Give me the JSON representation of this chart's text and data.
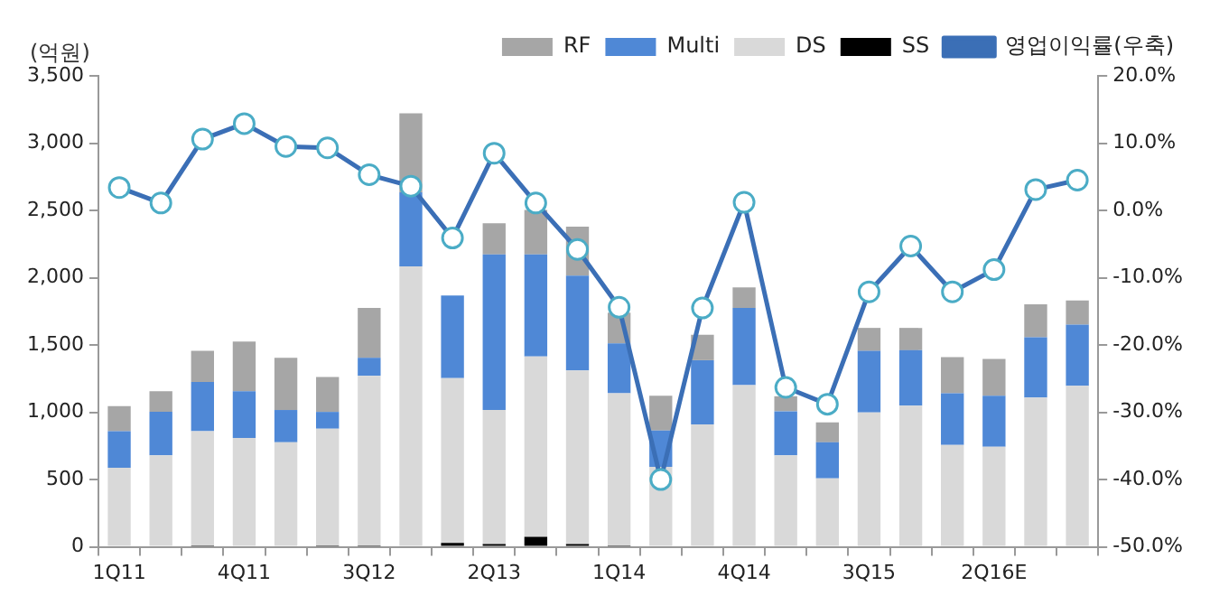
{
  "chart_data": {
    "type": "bar",
    "stacked": true,
    "ylabel": "(억원)",
    "categories": [
      "1Q11",
      null,
      null,
      "4Q11",
      null,
      null,
      "3Q12",
      null,
      null,
      "2Q13",
      null,
      null,
      "1Q14",
      null,
      null,
      "4Q14",
      null,
      null,
      "3Q15",
      null,
      null,
      "2Q16E",
      null,
      null
    ],
    "series": [
      {
        "name": "SS",
        "color": "#000000",
        "values": [
          0,
          0,
          10,
          0,
          0,
          10,
          10,
          0,
          30,
          20,
          75,
          20,
          10,
          null,
          null,
          0,
          0,
          0,
          0,
          0,
          0,
          0,
          0,
          0
        ]
      },
      {
        "name": "DS",
        "color": "#d9d9d9",
        "values": [
          587,
          680,
          850,
          809,
          777,
          868,
          1261,
          2085,
          1223,
          997,
          1340,
          1290,
          1132,
          595,
          910,
          1202,
          680,
          509,
          999,
          1049,
          758,
          744,
          1110,
          1197
        ]
      },
      {
        "name": "Multi",
        "color": "#4f88d6",
        "values": [
          273,
          323,
          365,
          347,
          240,
          125,
          134,
          550,
          615,
          1156,
          758,
          705,
          370,
          270,
          477,
          573,
          328,
          268,
          457,
          412,
          384,
          379,
          448,
          454
        ]
      },
      {
        "name": "RF",
        "color": "#a6a6a6",
        "values": [
          185,
          153,
          231,
          370,
          388,
          259,
          370,
          587,
          null,
          231,
          330,
          365,
          228,
          258,
          189,
          153,
          111,
          148,
          171,
          166,
          268,
          273,
          245,
          180
        ]
      },
      {
        "name": "영업이익률(우축)",
        "type": "line",
        "axis": "y2",
        "color": "#3b6fb6",
        "marker": "circle",
        "values": [
          3.4,
          1.1,
          10.6,
          12.9,
          9.5,
          9.3,
          5.3,
          3.6,
          -4.1,
          8.5,
          1.1,
          -5.8,
          -14.4,
          -40.0,
          -14.5,
          1.2,
          -26.3,
          -28.8,
          -12.1,
          -5.3,
          -12.1,
          -8.8,
          3.1,
          4.5
        ]
      }
    ],
    "ylim": [
      0,
      3500
    ],
    "yticks": [
      0,
      500,
      {
        "value": 1000,
        "label": "1,000"
      },
      {
        "value": 1500,
        "label": "1,500"
      },
      {
        "value": 2000,
        "label": "2,000"
      },
      {
        "value": 2500,
        "label": "2,500"
      },
      {
        "value": 3000,
        "label": "3,000"
      },
      {
        "value": 3500,
        "label": "3,500"
      }
    ],
    "y2lim": [
      -50,
      20
    ],
    "y2ticks": [
      {
        "value": -50,
        "label": "-50.0%"
      },
      {
        "value": -40,
        "label": "-40.0%"
      },
      {
        "value": -30,
        "label": "-30.0%"
      },
      {
        "value": -20,
        "label": "-20.0%"
      },
      {
        "value": -10,
        "label": "-10.0%"
      },
      {
        "value": 0,
        "label": "0.0%"
      },
      {
        "value": 10,
        "label": "10.0%"
      },
      {
        "value": 20,
        "label": "20.0%"
      }
    ],
    "legend": "top"
  }
}
